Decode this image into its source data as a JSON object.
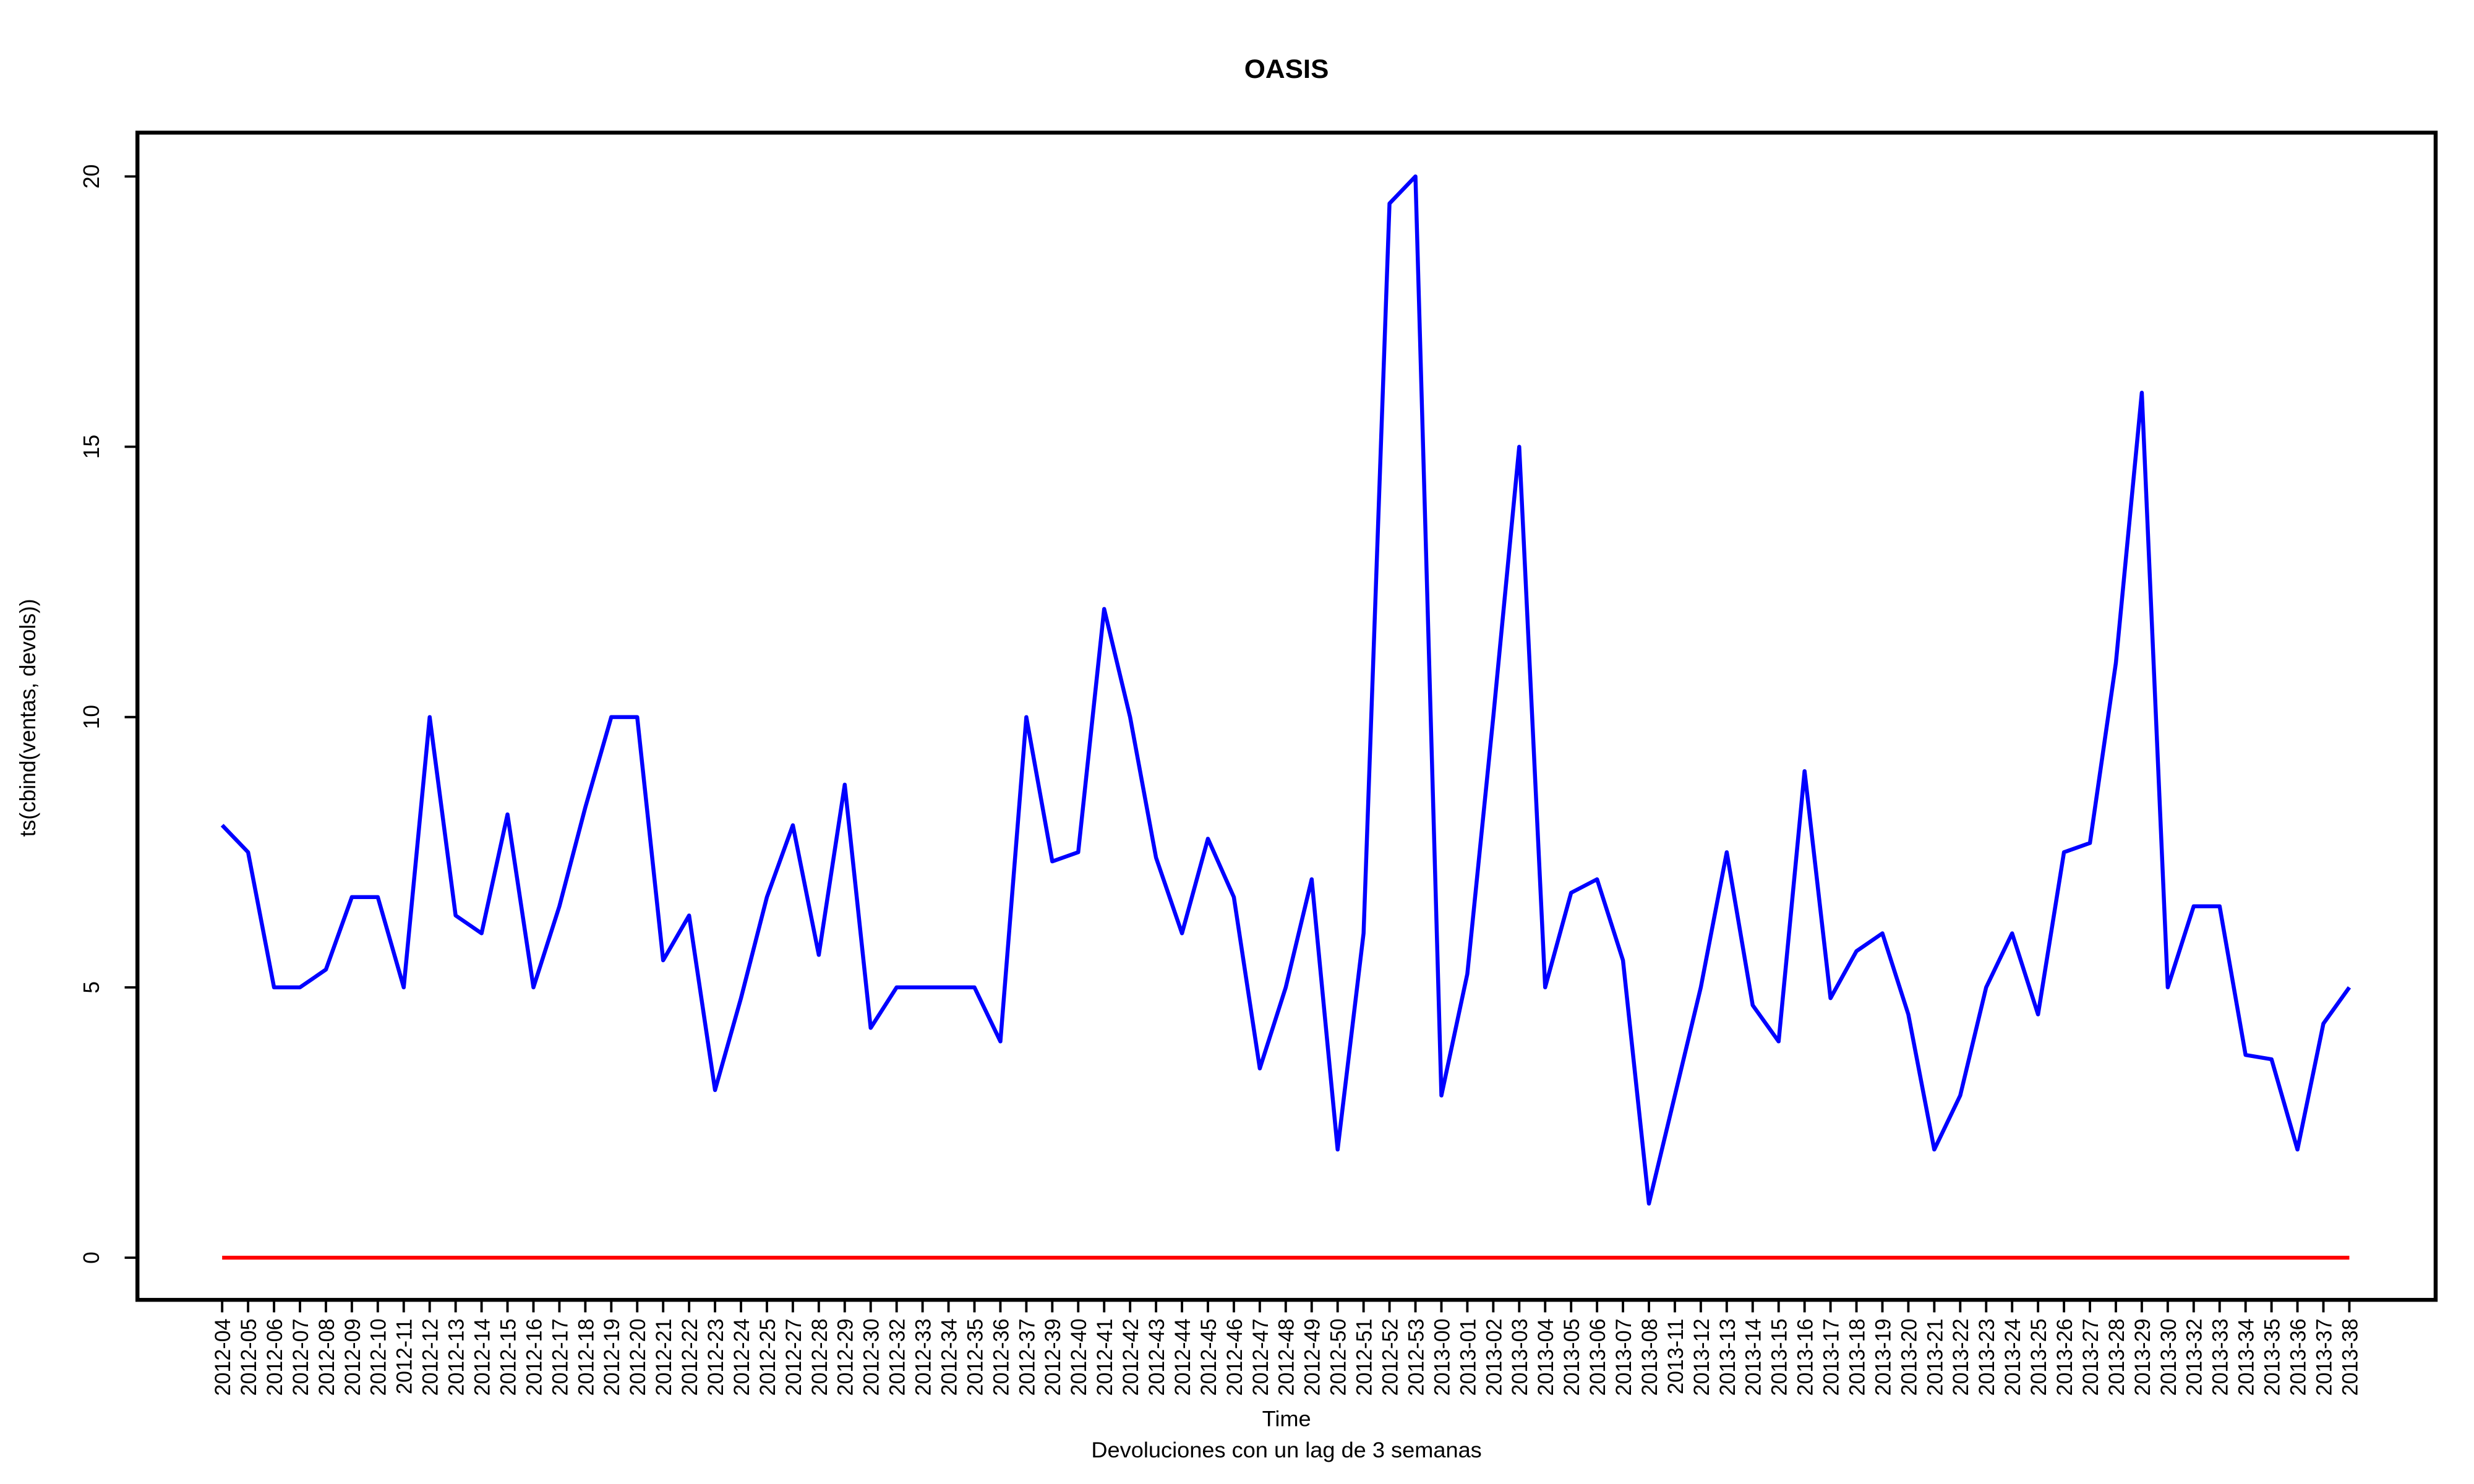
{
  "chart_data": {
    "type": "line",
    "title": "OASIS",
    "y_label": "ts(cbind(ventas, devols))",
    "x_label": "Time",
    "subtitle": "Devoluciones con un lag de 3 semanas",
    "categories": [
      "2012-04",
      "2012-05",
      "2012-06",
      "2012-07",
      "2012-08",
      "2012-09",
      "2012-10",
      "2012-11",
      "2012-12",
      "2012-13",
      "2012-14",
      "2012-15",
      "2012-16",
      "2012-17",
      "2012-18",
      "2012-19",
      "2012-20",
      "2012-21",
      "2012-22",
      "2012-23",
      "2012-24",
      "2012-25",
      "2012-27",
      "2012-28",
      "2012-29",
      "2012-30",
      "2012-32",
      "2012-33",
      "2012-34",
      "2012-35",
      "2012-36",
      "2012-37",
      "2012-39",
      "2012-40",
      "2012-41",
      "2012-42",
      "2012-43",
      "2012-44",
      "2012-45",
      "2012-46",
      "2012-47",
      "2012-48",
      "2012-49",
      "2012-50",
      "2012-51",
      "2012-52",
      "2012-53",
      "2013-00",
      "2013-01",
      "2013-02",
      "2013-03",
      "2013-04",
      "2013-05",
      "2013-06",
      "2013-07",
      "2013-08",
      "2013-11",
      "2013-12",
      "2013-13",
      "2013-14",
      "2013-15",
      "2013-16",
      "2013-17",
      "2013-18",
      "2013-19",
      "2013-20",
      "2013-21",
      "2013-22",
      "2013-23",
      "2013-24",
      "2013-25",
      "2013-26",
      "2013-27",
      "2013-28",
      "2013-29",
      "2013-30",
      "2013-32",
      "2013-33",
      "2013-34",
      "2013-35",
      "2013-36",
      "2013-37",
      "2013-38"
    ],
    "series": [
      {
        "color": "#0000ff",
        "values": [
          8,
          7.5,
          5,
          5,
          5.33,
          6.67,
          6.67,
          5,
          10,
          6.33,
          6,
          8.2,
          5,
          6.5,
          8.33,
          10,
          10,
          5.5,
          6.33,
          3.1,
          4.8,
          6.67,
          8,
          5.6,
          8.75,
          4.25,
          5,
          5,
          5,
          5,
          4,
          10,
          7.33,
          7.5,
          12,
          10,
          7.4,
          6,
          7.75,
          6.67,
          3.5,
          5,
          7,
          2,
          6,
          19.5,
          20,
          3,
          5.25,
          10,
          15,
          5,
          6.75,
          7,
          5.5,
          1,
          3,
          5,
          7.5,
          4.67,
          4,
          9,
          4.8,
          5.67,
          6,
          4.5,
          2,
          3,
          5,
          6,
          4.5,
          7.5,
          7.67,
          11,
          16,
          5,
          6.5,
          6.5,
          3.75,
          3.67,
          2,
          4.33,
          5
        ]
      },
      {
        "color": "#ff0000",
        "values": [
          0,
          0,
          0,
          0,
          0,
          0,
          0,
          0,
          0,
          0,
          0,
          0,
          0,
          0,
          0,
          0,
          0,
          0,
          0,
          0,
          0,
          0,
          0,
          0,
          0,
          0,
          0,
          0,
          0,
          0,
          0,
          0,
          0,
          0,
          0,
          0,
          0,
          0,
          0,
          0,
          0,
          0,
          0,
          0,
          0,
          0,
          0,
          0,
          0,
          0,
          0,
          0,
          0,
          0,
          0,
          0,
          0,
          0,
          0,
          0,
          0,
          0,
          0,
          0,
          0,
          0,
          0,
          0,
          0,
          0,
          0,
          0,
          0,
          0,
          0,
          0,
          0,
          0,
          0,
          0,
          0,
          0,
          0
        ]
      }
    ],
    "ylim": [
      -0.78,
      20.81
    ],
    "yticks": [
      0,
      5,
      10,
      15,
      20
    ]
  }
}
